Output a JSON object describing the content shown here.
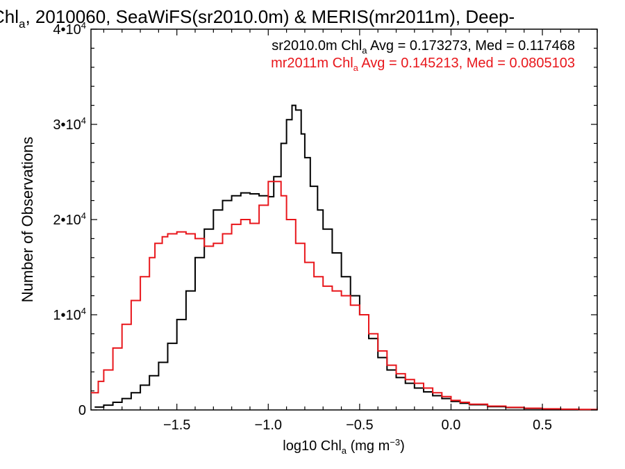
{
  "chart_data": {
    "type": "line",
    "title": {
      "pre": "Chl",
      "sub": "a",
      "post": ", 2010060, SeaWiFS(sr2010.0m) & MERIS(mr2011m), Deep-"
    },
    "xlabel": {
      "pre": "log10 Chl",
      "sub": "a",
      "mid": " (mg m",
      "sup": "−3",
      "post": ")"
    },
    "ylabel": "Number of Observations",
    "xlim": [
      -1.97,
      0.8
    ],
    "ylim": [
      0,
      40000
    ],
    "x_ticks": [
      {
        "value": -1.5,
        "label": "−1.5"
      },
      {
        "value": -1.0,
        "label": "−1.0"
      },
      {
        "value": -0.5,
        "label": "−0.5"
      },
      {
        "value": 0.0,
        "label": "0.0"
      },
      {
        "value": 0.5,
        "label": "0.5"
      }
    ],
    "y_ticks": [
      {
        "value": 0,
        "base": "0",
        "exp": ""
      },
      {
        "value": 10000,
        "base": "1•10",
        "exp": "4"
      },
      {
        "value": 20000,
        "base": "2•10",
        "exp": "4"
      },
      {
        "value": 30000,
        "base": "3•10",
        "exp": "4"
      },
      {
        "value": 40000,
        "base": "4•10",
        "exp": "4"
      }
    ],
    "grid": false,
    "legend_placement": "top-right",
    "series": [
      {
        "name": "sr2010.0m",
        "color": "#000000",
        "legend": {
          "pre": "sr2010.0m Chl",
          "sub": "a",
          "post": " Avg = 0.173273, Med = 0.117468"
        },
        "x": [
          -1.95,
          -1.9,
          -1.85,
          -1.8,
          -1.75,
          -1.7,
          -1.65,
          -1.6,
          -1.55,
          -1.5,
          -1.45,
          -1.4,
          -1.35,
          -1.3,
          -1.25,
          -1.2,
          -1.15,
          -1.1,
          -1.05,
          -1.0,
          -0.97,
          -0.93,
          -0.9,
          -0.87,
          -0.85,
          -0.82,
          -0.8,
          -0.77,
          -0.73,
          -0.7,
          -0.65,
          -0.6,
          -0.55,
          -0.5,
          -0.45,
          -0.4,
          -0.35,
          -0.3,
          -0.25,
          -0.2,
          -0.15,
          -0.1,
          -0.05,
          0.0,
          0.05,
          0.1,
          0.2,
          0.3,
          0.4,
          0.5,
          0.6,
          0.7,
          0.8
        ],
        "y": [
          300,
          500,
          800,
          1200,
          1800,
          2600,
          3600,
          5000,
          7000,
          9500,
          12500,
          16000,
          19000,
          21000,
          22000,
          22500,
          22800,
          22700,
          22500,
          22400,
          24500,
          28000,
          30500,
          32000,
          31500,
          29000,
          26500,
          23500,
          21000,
          19000,
          16500,
          14000,
          12000,
          10000,
          7500,
          5500,
          4200,
          3400,
          2800,
          2300,
          1900,
          1500,
          1200,
          900,
          700,
          550,
          350,
          250,
          150,
          100,
          60,
          40,
          20
        ]
      },
      {
        "name": "mr2011m",
        "color": "#e8161b",
        "legend": {
          "pre": "mr2011m Chl",
          "sub": "a",
          "post": " Avg = 0.145213, Med = 0.0805103"
        },
        "x": [
          -1.97,
          -1.93,
          -1.9,
          -1.85,
          -1.8,
          -1.75,
          -1.7,
          -1.65,
          -1.62,
          -1.58,
          -1.55,
          -1.5,
          -1.45,
          -1.4,
          -1.35,
          -1.3,
          -1.25,
          -1.2,
          -1.15,
          -1.1,
          -1.05,
          -1.0,
          -0.97,
          -0.93,
          -0.9,
          -0.85,
          -0.8,
          -0.75,
          -0.7,
          -0.65,
          -0.6,
          -0.55,
          -0.5,
          -0.45,
          -0.4,
          -0.35,
          -0.3,
          -0.25,
          -0.2,
          -0.15,
          -0.1,
          -0.05,
          0.0,
          0.05,
          0.1,
          0.2,
          0.3,
          0.4,
          0.5,
          0.6,
          0.7,
          0.8
        ],
        "y": [
          1800,
          3000,
          4200,
          6500,
          9000,
          11500,
          14000,
          16000,
          17500,
          18200,
          18500,
          18700,
          18500,
          18000,
          17200,
          17500,
          18500,
          19500,
          20000,
          19600,
          21500,
          24000,
          24000,
          22500,
          20000,
          17500,
          15500,
          14000,
          13000,
          12500,
          12000,
          11000,
          10000,
          8000,
          6200,
          4700,
          3800,
          3200,
          2800,
          2300,
          1800,
          1400,
          1000,
          800,
          600,
          400,
          280,
          180,
          120,
          80,
          50,
          30
        ]
      }
    ]
  }
}
